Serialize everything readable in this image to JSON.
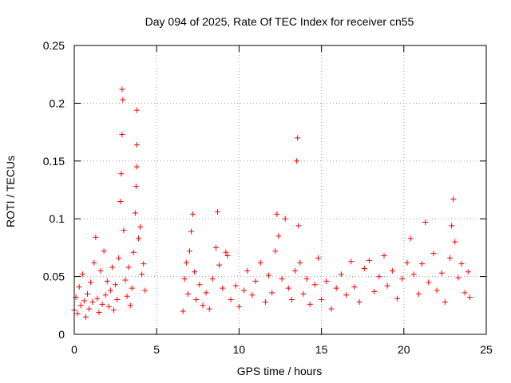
{
  "chart_data": {
    "type": "scatter",
    "title": "Day 094 of 2025, Rate Of TEC Index for receiver cn55",
    "xlabel": "GPS time / hours",
    "ylabel": "ROTI / TECUs",
    "xlim": [
      0,
      25
    ],
    "ylim": [
      0,
      0.25
    ],
    "xticks": [
      0,
      5,
      10,
      15,
      20,
      25
    ],
    "xtick_labels": [
      "0",
      "5",
      "10",
      "15",
      "20",
      "25"
    ],
    "yticks": [
      0,
      0.05,
      0.1,
      0.15,
      0.2,
      0.25
    ],
    "ytick_labels": [
      "0",
      "0.05",
      "0.1",
      "0.15",
      "0.2",
      "0.25"
    ],
    "grid": true,
    "marker": "+",
    "color": "#ff0000",
    "series": [
      {
        "name": "ROTI",
        "points": [
          [
            0.0,
            0.021
          ],
          [
            0.1,
            0.032
          ],
          [
            0.2,
            0.018
          ],
          [
            0.3,
            0.041
          ],
          [
            0.4,
            0.025
          ],
          [
            0.5,
            0.052
          ],
          [
            0.6,
            0.029
          ],
          [
            0.7,
            0.015
          ],
          [
            0.8,
            0.035
          ],
          [
            0.9,
            0.022
          ],
          [
            1.0,
            0.045
          ],
          [
            1.1,
            0.028
          ],
          [
            1.2,
            0.062
          ],
          [
            1.3,
            0.084
          ],
          [
            1.4,
            0.031
          ],
          [
            1.5,
            0.019
          ],
          [
            1.6,
            0.055
          ],
          [
            1.7,
            0.026
          ],
          [
            1.8,
            0.072
          ],
          [
            1.9,
            0.034
          ],
          [
            2.0,
            0.046
          ],
          [
            2.1,
            0.024
          ],
          [
            2.2,
            0.038
          ],
          [
            2.3,
            0.058
          ],
          [
            2.4,
            0.021
          ],
          [
            2.5,
            0.043
          ],
          [
            2.6,
            0.03
          ],
          [
            2.7,
            0.066
          ],
          [
            2.8,
            0.115
          ],
          [
            2.85,
            0.139
          ],
          [
            2.9,
            0.173
          ],
          [
            2.95,
            0.203
          ],
          [
            2.9,
            0.212
          ],
          [
            3.0,
            0.09
          ],
          [
            3.1,
            0.047
          ],
          [
            3.2,
            0.033
          ],
          [
            3.3,
            0.058
          ],
          [
            3.4,
            0.025
          ],
          [
            3.5,
            0.04
          ],
          [
            3.6,
            0.071
          ],
          [
            3.7,
            0.105
          ],
          [
            3.75,
            0.128
          ],
          [
            3.8,
            0.145
          ],
          [
            3.8,
            0.164
          ],
          [
            3.8,
            0.194
          ],
          [
            3.9,
            0.083
          ],
          [
            4.0,
            0.093
          ],
          [
            4.1,
            0.052
          ],
          [
            4.2,
            0.061
          ],
          [
            4.3,
            0.038
          ],
          [
            6.6,
            0.02
          ],
          [
            6.7,
            0.048
          ],
          [
            6.8,
            0.062
          ],
          [
            6.9,
            0.035
          ],
          [
            7.0,
            0.072
          ],
          [
            7.1,
            0.089
          ],
          [
            7.2,
            0.104
          ],
          [
            7.3,
            0.054
          ],
          [
            7.4,
            0.03
          ],
          [
            7.6,
            0.043
          ],
          [
            7.8,
            0.025
          ],
          [
            8.0,
            0.036
          ],
          [
            8.2,
            0.022
          ],
          [
            8.4,
            0.048
          ],
          [
            8.6,
            0.075
          ],
          [
            8.7,
            0.106
          ],
          [
            8.8,
            0.06
          ],
          [
            9.0,
            0.04
          ],
          [
            9.2,
            0.071
          ],
          [
            9.3,
            0.068
          ],
          [
            9.5,
            0.03
          ],
          [
            9.8,
            0.042
          ],
          [
            10.0,
            0.024
          ],
          [
            10.3,
            0.038
          ],
          [
            10.5,
            0.055
          ],
          [
            10.8,
            0.034
          ],
          [
            11.0,
            0.046
          ],
          [
            11.3,
            0.062
          ],
          [
            11.6,
            0.028
          ],
          [
            11.8,
            0.051
          ],
          [
            12.0,
            0.036
          ],
          [
            12.2,
            0.072
          ],
          [
            12.3,
            0.104
          ],
          [
            12.4,
            0.085
          ],
          [
            12.6,
            0.048
          ],
          [
            12.8,
            0.1
          ],
          [
            13.0,
            0.04
          ],
          [
            13.2,
            0.03
          ],
          [
            13.4,
            0.055
          ],
          [
            13.5,
            0.15
          ],
          [
            13.55,
            0.17
          ],
          [
            13.6,
            0.094
          ],
          [
            13.7,
            0.062
          ],
          [
            13.9,
            0.035
          ],
          [
            14.1,
            0.048
          ],
          [
            14.3,
            0.026
          ],
          [
            14.6,
            0.043
          ],
          [
            14.8,
            0.066
          ],
          [
            15.0,
            0.03
          ],
          [
            15.3,
            0.046
          ],
          [
            15.6,
            0.022
          ],
          [
            15.9,
            0.04
          ],
          [
            16.2,
            0.052
          ],
          [
            16.5,
            0.034
          ],
          [
            16.8,
            0.063
          ],
          [
            17.0,
            0.041
          ],
          [
            17.3,
            0.028
          ],
          [
            17.6,
            0.057
          ],
          [
            17.9,
            0.064
          ],
          [
            18.2,
            0.037
          ],
          [
            18.5,
            0.05
          ],
          [
            18.8,
            0.068
          ],
          [
            19.0,
            0.042
          ],
          [
            19.3,
            0.055
          ],
          [
            19.6,
            0.031
          ],
          [
            19.9,
            0.048
          ],
          [
            20.2,
            0.062
          ],
          [
            20.4,
            0.083
          ],
          [
            20.6,
            0.052
          ],
          [
            20.9,
            0.035
          ],
          [
            21.1,
            0.061
          ],
          [
            21.3,
            0.097
          ],
          [
            21.5,
            0.045
          ],
          [
            21.8,
            0.07
          ],
          [
            22.0,
            0.038
          ],
          [
            22.3,
            0.053
          ],
          [
            22.5,
            0.028
          ],
          [
            22.8,
            0.066
          ],
          [
            22.9,
            0.094
          ],
          [
            23.0,
            0.117
          ],
          [
            23.1,
            0.08
          ],
          [
            23.3,
            0.049
          ],
          [
            23.5,
            0.061
          ],
          [
            23.7,
            0.036
          ],
          [
            23.9,
            0.054
          ],
          [
            24.0,
            0.032
          ]
        ]
      }
    ]
  }
}
